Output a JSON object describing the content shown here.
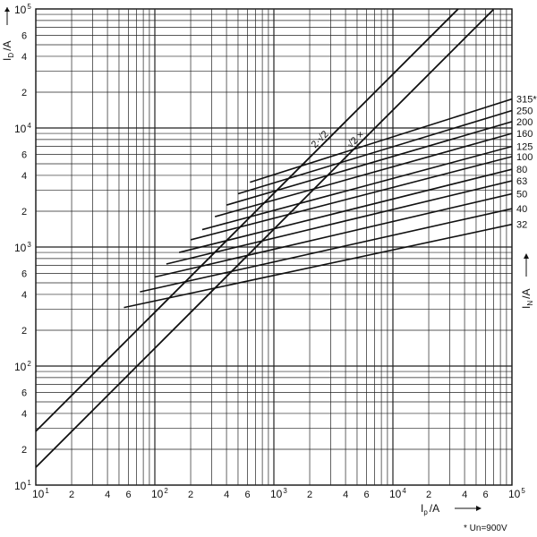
{
  "chart_data": {
    "type": "line",
    "xscale": "log",
    "yscale": "log",
    "xlim": [
      10,
      100000
    ],
    "ylim": [
      10,
      100000
    ],
    "grid": true,
    "x_major_ticks": [
      {
        "base": "10",
        "exp": "1",
        "value": 10
      },
      {
        "base": "10",
        "exp": "2",
        "value": 100
      },
      {
        "base": "10",
        "exp": "3",
        "value": 1000
      },
      {
        "base": "10",
        "exp": "4",
        "value": 10000
      },
      {
        "base": "10",
        "exp": "5",
        "value": 100000
      }
    ],
    "y_major_ticks": [
      {
        "base": "10",
        "exp": "1",
        "value": 10
      },
      {
        "base": "10",
        "exp": "2",
        "value": 100
      },
      {
        "base": "10",
        "exp": "3",
        "value": 1000
      },
      {
        "base": "10",
        "exp": "4",
        "value": 10000
      },
      {
        "base": "10",
        "exp": "5",
        "value": 100000
      }
    ],
    "minor_tick_labels": [
      "2",
      "4",
      "6"
    ],
    "xlabel": "I",
    "xlabel_sub": "p",
    "xlabel_unit": "/A",
    "ylabel": "I",
    "ylabel_sub": "D",
    "ylabel_unit": "/A",
    "rating_axis_label": "I",
    "rating_axis_sub": "N",
    "rating_axis_unit": "/A",
    "footnote": "* Un=900V",
    "envelope_lines": [
      {
        "label": "2·√2",
        "x": [
          10,
          40000
        ],
        "y": [
          28.3,
          113137
        ]
      },
      {
        "label": "√2 ×",
        "x": [
          10,
          70000
        ],
        "y": [
          14.1,
          98995
        ]
      }
    ],
    "ratings": [
      {
        "label": "315*",
        "x": [
          630,
          100000
        ],
        "y": [
          3500,
          17500
        ]
      },
      {
        "label": "250",
        "x": [
          500,
          100000
        ],
        "y": [
          2800,
          14000
        ]
      },
      {
        "label": "200",
        "x": [
          400,
          100000
        ],
        "y": [
          2250,
          11300
        ]
      },
      {
        "label": "160",
        "x": [
          320,
          100000
        ],
        "y": [
          1800,
          9000
        ]
      },
      {
        "label": "125",
        "x": [
          250,
          100000
        ],
        "y": [
          1400,
          7000
        ]
      },
      {
        "label": "100",
        "x": [
          200,
          100000
        ],
        "y": [
          1150,
          5750
        ]
      },
      {
        "label": "80",
        "x": [
          160,
          100000
        ],
        "y": [
          900,
          4500
        ]
      },
      {
        "label": "63",
        "x": [
          125,
          100000
        ],
        "y": [
          720,
          3600
        ]
      },
      {
        "label": "50",
        "x": [
          100,
          100000
        ],
        "y": [
          560,
          2800
        ]
      },
      {
        "label": "40",
        "x": [
          75,
          100000
        ],
        "y": [
          420,
          2100
        ]
      },
      {
        "label": "32",
        "x": [
          55,
          100000
        ],
        "y": [
          310,
          1550
        ]
      }
    ]
  }
}
